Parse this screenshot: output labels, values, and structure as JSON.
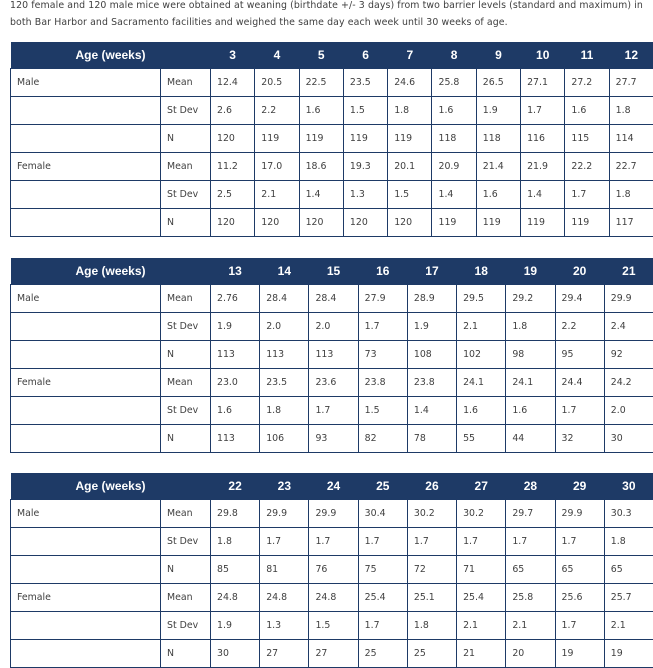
{
  "intro_lines": [
    "120 female and 120 male mice were obtained at weaning (birthdate +/- 3 days) from two barrier levels (standard and maximum) in",
    "both Bar Harbor and Sacramento facilities and weighed the same day each week until 30 weeks of age."
  ],
  "header_label": "Age (weeks)",
  "stat_labels": [
    "Mean",
    "St Dev",
    "N"
  ],
  "group_labels": [
    "Male",
    "Female"
  ],
  "tables": [
    {
      "weeks": [
        "3",
        "4",
        "5",
        "6",
        "7",
        "8",
        "9",
        "10",
        "11",
        "12"
      ],
      "groups": [
        {
          "label": "Male",
          "rows": [
            [
              "12.4",
              "20.5",
              "22.5",
              "23.5",
              "24.6",
              "25.8",
              "26.5",
              "27.1",
              "27.2",
              "27.7"
            ],
            [
              "2.6",
              "2.2",
              "1.6",
              "1.5",
              "1.8",
              "1.6",
              "1.9",
              "1.7",
              "1.6",
              "1.8"
            ],
            [
              "120",
              "119",
              "119",
              "119",
              "119",
              "118",
              "118",
              "116",
              "115",
              "114"
            ]
          ]
        },
        {
          "label": "Female",
          "rows": [
            [
              "11.2",
              "17.0",
              "18.6",
              "19.3",
              "20.1",
              "20.9",
              "21.4",
              "21.9",
              "22.2",
              "22.7"
            ],
            [
              "2.5",
              "2.1",
              "1.4",
              "1.3",
              "1.5",
              "1.4",
              "1.6",
              "1.4",
              "1.7",
              "1.8"
            ],
            [
              "120",
              "120",
              "120",
              "120",
              "120",
              "119",
              "119",
              "119",
              "119",
              "117"
            ]
          ]
        }
      ]
    },
    {
      "weeks": [
        "13",
        "14",
        "15",
        "16",
        "17",
        "18",
        "19",
        "20",
        "21"
      ],
      "groups": [
        {
          "label": "Male",
          "rows": [
            [
              "2.76",
              "28.4",
              "28.4",
              "27.9",
              "28.9",
              "29.5",
              "29.2",
              "29.4",
              "29.9"
            ],
            [
              "1.9",
              "2.0",
              "2.0",
              "1.7",
              "1.9",
              "2.1",
              "1.8",
              "2.2",
              "2.4"
            ],
            [
              "113",
              "113",
              "113",
              "73",
              "108",
              "102",
              "98",
              "95",
              "92"
            ]
          ]
        },
        {
          "label": "Female",
          "rows": [
            [
              "23.0",
              "23.5",
              "23.6",
              "23.8",
              "23.8",
              "24.1",
              "24.1",
              "24.4",
              "24.2"
            ],
            [
              "1.6",
              "1.8",
              "1.7",
              "1.5",
              "1.4",
              "1.6",
              "1.6",
              "1.7",
              "2.0"
            ],
            [
              "113",
              "106",
              "93",
              "82",
              "78",
              "55",
              "44",
              "32",
              "30"
            ]
          ]
        }
      ]
    },
    {
      "weeks": [
        "22",
        "23",
        "24",
        "25",
        "26",
        "27",
        "28",
        "29",
        "30"
      ],
      "groups": [
        {
          "label": "Male",
          "rows": [
            [
              "29.8",
              "29.9",
              "29.9",
              "30.4",
              "30.2",
              "30.2",
              "29.7",
              "29.9",
              "30.3"
            ],
            [
              "1.8",
              "1.7",
              "1.7",
              "1.7",
              "1.7",
              "1.7",
              "1.7",
              "1.7",
              "1.8"
            ],
            [
              "85",
              "81",
              "76",
              "75",
              "72",
              "71",
              "65",
              "65",
              "65"
            ]
          ]
        },
        {
          "label": "Female",
          "rows": [
            [
              "24.8",
              "24.8",
              "24.8",
              "25.4",
              "25.1",
              "25.4",
              "25.8",
              "25.6",
              "25.7"
            ],
            [
              "1.9",
              "1.3",
              "1.5",
              "1.7",
              "1.8",
              "2.1",
              "2.1",
              "1.7",
              "2.1"
            ],
            [
              "30",
              "27",
              "27",
              "25",
              "25",
              "21",
              "20",
              "19",
              "19"
            ]
          ]
        }
      ]
    }
  ]
}
